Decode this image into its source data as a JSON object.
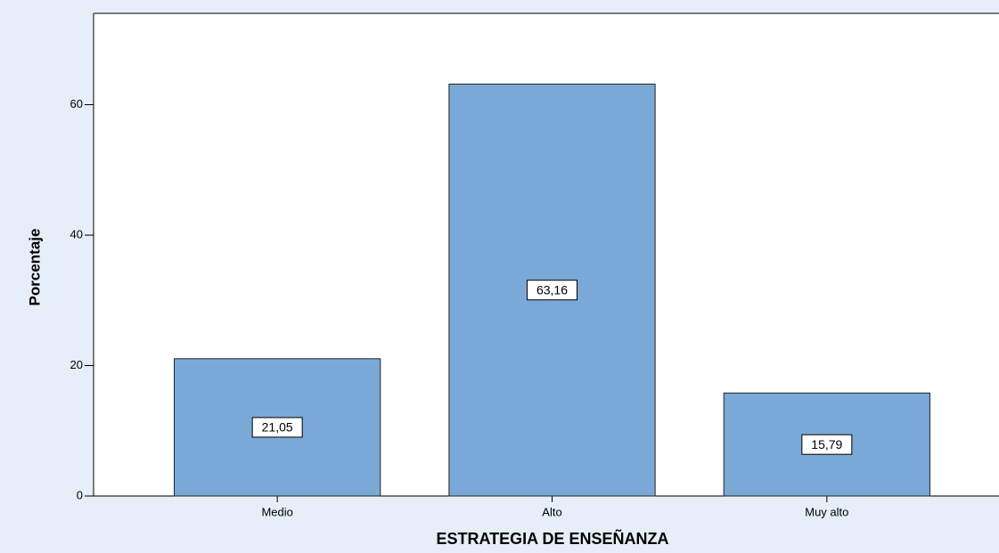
{
  "chart_data": {
    "type": "bar",
    "x_label": "ESTRATEGIA DE ENSEÑANZA",
    "y_label": "Porcentaje",
    "categories": [
      "Medio",
      "Alto",
      "Muy alto"
    ],
    "values": [
      21.05,
      63.16,
      15.79
    ],
    "value_labels": [
      "21,05",
      "63,16",
      "15,79"
    ],
    "color": "#7ba9d7",
    "ylim": [
      0,
      74
    ],
    "yticks": [
      0,
      20,
      40,
      60
    ]
  }
}
